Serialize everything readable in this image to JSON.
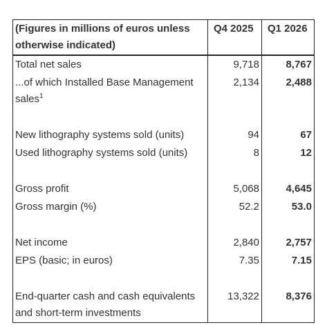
{
  "table": {
    "header": [
      "(Figures in millions of euros unless otherwise indicated)",
      "Q4 2025",
      "Q1 2026"
    ],
    "groups": [
      [
        {
          "label": "Total net sales",
          "q4": "9,718",
          "q1": "8,767"
        },
        {
          "label": "...of which Installed Base Management sales",
          "note": "1",
          "q4": "2,134",
          "q1": "2,488"
        }
      ],
      [
        {
          "label": "New lithography systems sold (units)",
          "q4": "94",
          "q1": "67"
        },
        {
          "label": "Used lithography systems sold (units)",
          "q4": "8",
          "q1": "12"
        }
      ],
      [
        {
          "label": "Gross profit",
          "q4": "5,068",
          "q1": "4,645"
        },
        {
          "label": "Gross margin (%)",
          "q4": "52.2",
          "q1": "53.0"
        }
      ],
      [
        {
          "label": "Net income",
          "q4": "2,840",
          "q1": "2,757"
        },
        {
          "label": "EPS (basic; in euros)",
          "q4": "7.35",
          "q1": "7.15"
        }
      ],
      [
        {
          "label": "End-quarter cash and cash equivalents and short-term investments",
          "q4": "13,322",
          "q1": "8,376"
        }
      ]
    ]
  }
}
